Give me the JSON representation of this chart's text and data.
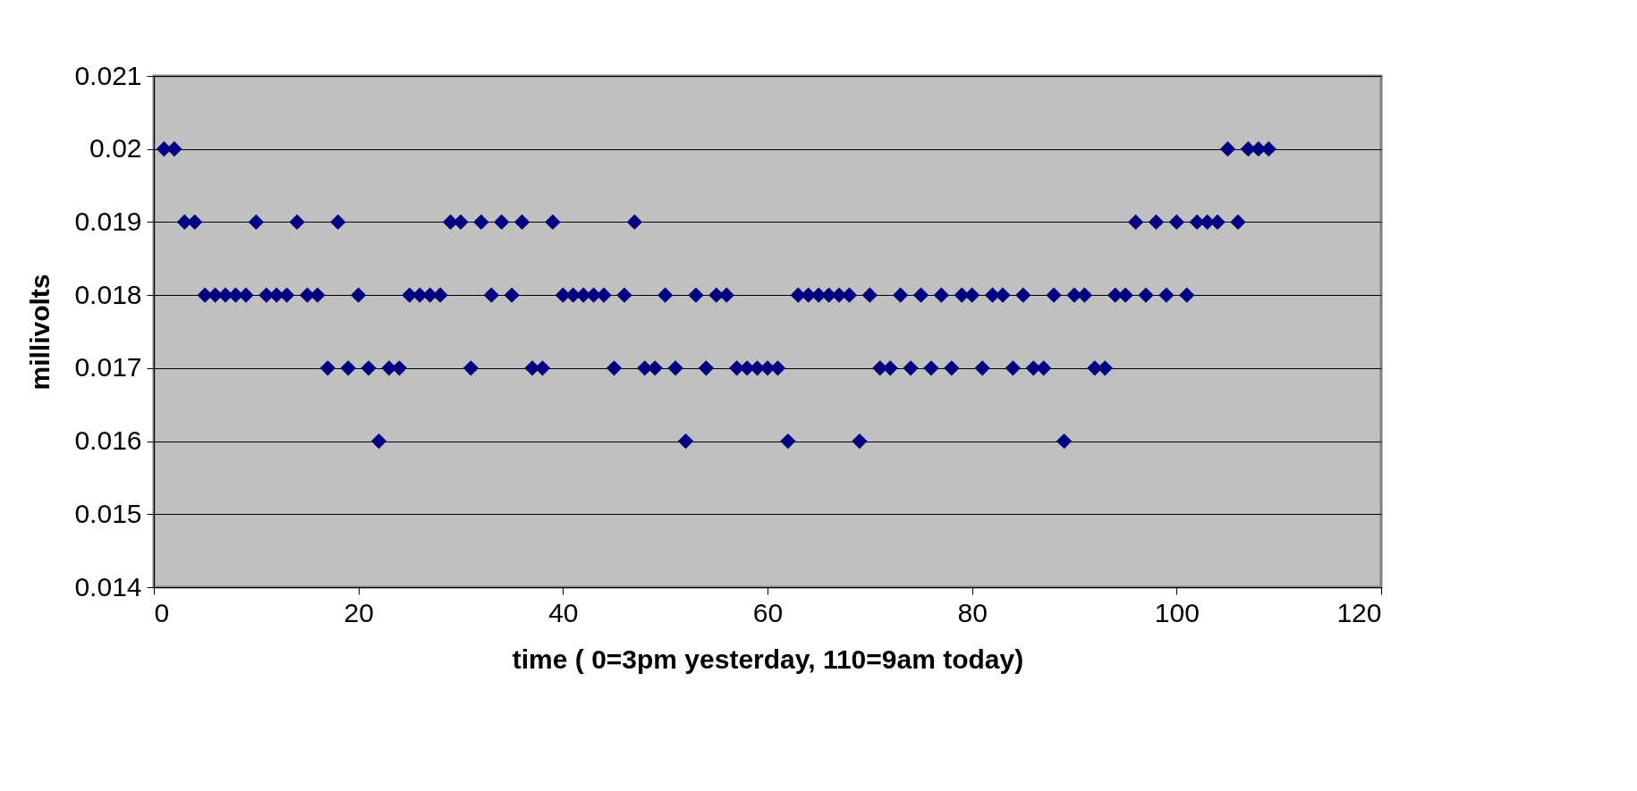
{
  "chart_data": {
    "type": "scatter",
    "xlabel": "time ( 0=3pm yesterday, 110=9am today)",
    "ylabel": "millivolts",
    "x": [
      1,
      2,
      3,
      4,
      5,
      6,
      7,
      8,
      9,
      10,
      11,
      12,
      13,
      14,
      15,
      16,
      17,
      18,
      19,
      20,
      21,
      22,
      23,
      24,
      25,
      26,
      27,
      28,
      29,
      30,
      31,
      32,
      33,
      34,
      35,
      36,
      37,
      38,
      39,
      40,
      41,
      42,
      43,
      44,
      45,
      46,
      47,
      48,
      49,
      50,
      51,
      52,
      53,
      54,
      55,
      56,
      57,
      58,
      59,
      60,
      61,
      62,
      63,
      64,
      65,
      66,
      67,
      68,
      69,
      70,
      71,
      72,
      73,
      74,
      75,
      76,
      77,
      78,
      79,
      80,
      81,
      82,
      83,
      84,
      85,
      86,
      87,
      88,
      89,
      90,
      91,
      92,
      93,
      94,
      95,
      96,
      97,
      98,
      99,
      100,
      101,
      102,
      103,
      104,
      105,
      106,
      107,
      108,
      109
    ],
    "series": [
      {
        "color": "#000080",
        "values": [
          0.02,
          0.02,
          0.019,
          0.019,
          0.018,
          0.018,
          0.018,
          0.018,
          0.018,
          0.019,
          0.018,
          0.018,
          0.018,
          0.019,
          0.018,
          0.018,
          0.017,
          0.019,
          0.017,
          0.018,
          0.017,
          0.016,
          0.017,
          0.017,
          0.018,
          0.018,
          0.018,
          0.018,
          0.019,
          0.019,
          0.017,
          0.019,
          0.018,
          0.019,
          0.018,
          0.019,
          0.017,
          0.017,
          0.019,
          0.018,
          0.018,
          0.018,
          0.018,
          0.018,
          0.017,
          0.018,
          0.019,
          0.017,
          0.017,
          0.018,
          0.017,
          0.016,
          0.018,
          0.017,
          0.018,
          0.018,
          0.017,
          0.017,
          0.017,
          0.017,
          0.017,
          0.016,
          0.018,
          0.018,
          0.018,
          0.018,
          0.018,
          0.018,
          0.016,
          0.018,
          0.017,
          0.017,
          0.018,
          0.017,
          0.018,
          0.017,
          0.018,
          0.017,
          0.018,
          0.018,
          0.017,
          0.018,
          0.018,
          0.017,
          0.018,
          0.017,
          0.017,
          0.018,
          0.016,
          0.018,
          0.018,
          0.017,
          0.017,
          0.018,
          0.018,
          0.019,
          0.018,
          0.019,
          0.018,
          0.019,
          0.018,
          0.019,
          0.019,
          0.019,
          0.02,
          0.019,
          0.02,
          0.02,
          0.02
        ]
      }
    ],
    "xlim": [
      0,
      120
    ],
    "xticks": [
      0,
      20,
      40,
      60,
      80,
      100,
      120
    ],
    "ylim": [
      0.014,
      0.021
    ],
    "yticks": [
      0.014,
      0.015,
      0.016,
      0.017,
      0.018,
      0.019,
      0.02,
      0.021
    ],
    "grid": "y",
    "marker": "diamond"
  }
}
